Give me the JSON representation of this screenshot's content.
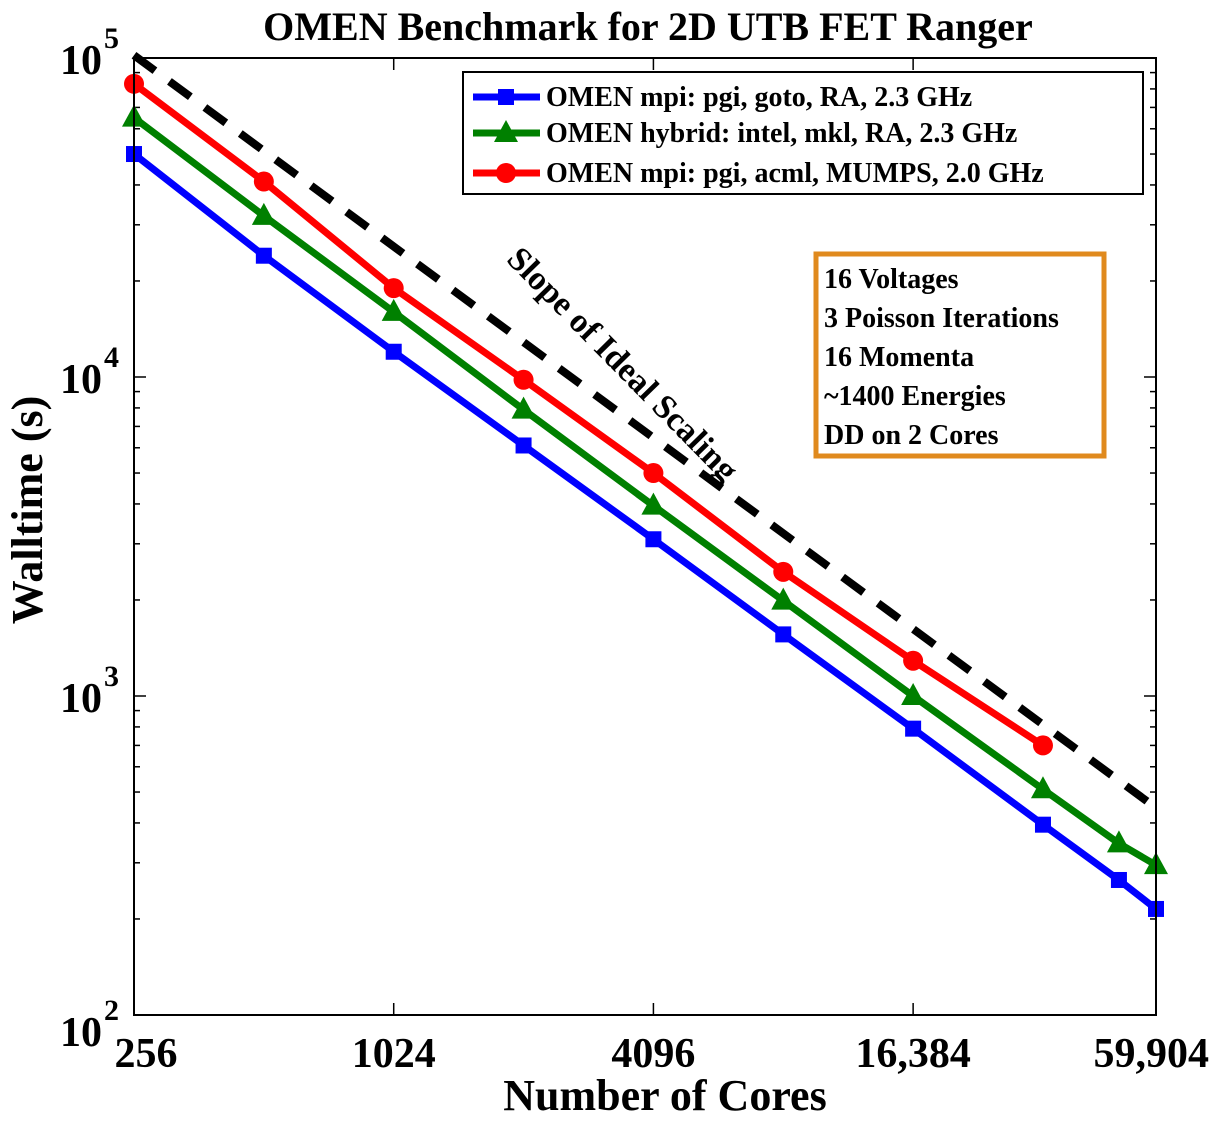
{
  "chart_data": {
    "type": "line",
    "title": "OMEN Benchmark for 2D UTB FET Ranger",
    "xlabel": "Number of Cores",
    "ylabel": "Walltime (s)",
    "x_scale": "log2",
    "y_scale": "log10",
    "xlim": [
      256,
      59904
    ],
    "ylim": [
      100,
      100000
    ],
    "x_ticks": [
      {
        "value": 256,
        "label": "256"
      },
      {
        "value": 1024,
        "label": "1024"
      },
      {
        "value": 4096,
        "label": "4096"
      },
      {
        "value": 16384,
        "label": "16,384"
      },
      {
        "value": 59904,
        "label": "59,904"
      }
    ],
    "y_ticks": [
      {
        "value": 100,
        "base": "10",
        "exp": "2"
      },
      {
        "value": 1000,
        "base": "10",
        "exp": "3"
      },
      {
        "value": 10000,
        "base": "10",
        "exp": "4"
      },
      {
        "value": 100000,
        "base": "10",
        "exp": "5"
      }
    ],
    "series": [
      {
        "name": "OMEN mpi: pgi, goto, RA, 2.3 GHz",
        "color": "#0000ff",
        "marker": "square",
        "x": [
          256,
          512,
          1024,
          2048,
          4096,
          8192,
          16384,
          32768,
          49152,
          59904
        ],
        "y": [
          50000,
          24000,
          12000,
          6100,
          3100,
          1560,
          790,
          395,
          265,
          215
        ]
      },
      {
        "name": "OMEN hybrid: intel, mkl, RA, 2.3 GHz",
        "color": "#008000",
        "marker": "triangle",
        "x": [
          256,
          512,
          1024,
          2048,
          4096,
          8192,
          16384,
          32768,
          49152,
          59904
        ],
        "y": [
          65000,
          32000,
          16000,
          7900,
          3950,
          1990,
          1000,
          510,
          345,
          295
        ]
      },
      {
        "name": "OMEN mpi: pgi, acml, MUMPS, 2.0 GHz",
        "color": "#ff0000",
        "marker": "circle",
        "x": [
          256,
          512,
          1024,
          2048,
          4096,
          8192,
          16384,
          32768
        ],
        "y": [
          83000,
          41000,
          19000,
          9800,
          5000,
          2450,
          1290,
          700
        ]
      },
      {
        "name": "Slope of Ideal Scaling",
        "color": "#000000",
        "style": "dashed",
        "x": [
          256,
          59904
        ],
        "y": [
          102000,
          446
        ]
      }
    ],
    "legend": {
      "placement": "top-right",
      "entries": [
        "OMEN mpi: pgi, goto, RA, 2.3 GHz",
        "OMEN hybrid: intel, mkl, RA, 2.3 GHz",
        "OMEN mpi: pgi, acml, MUMPS, 2.0 GHz"
      ]
    },
    "annotation": "Slope of Ideal Scaling",
    "info_box": {
      "border_color": "#e08a1e",
      "lines": [
        "16 Voltages",
        "3 Poisson Iterations",
        "16 Momenta",
        "~1400 Energies",
        "DD on 2 Cores"
      ]
    },
    "grid": false
  }
}
